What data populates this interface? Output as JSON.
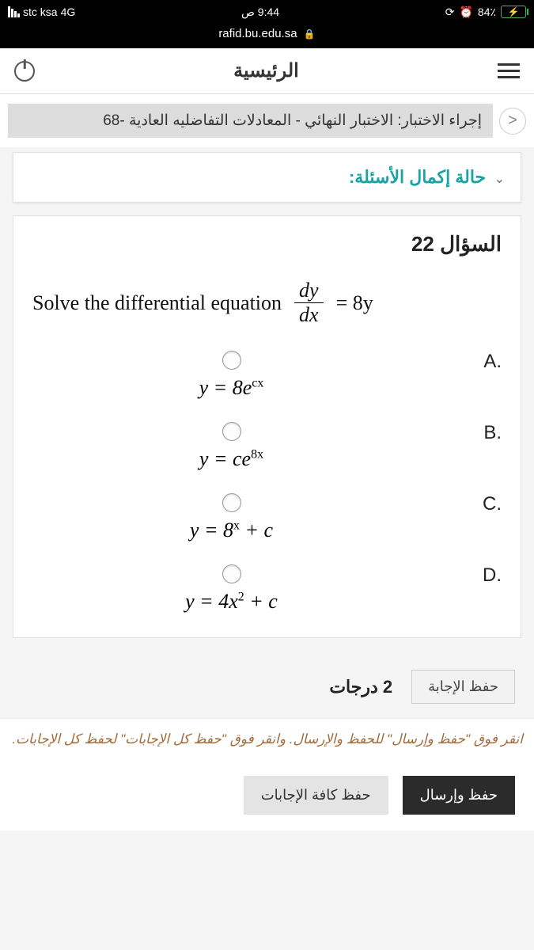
{
  "status": {
    "battery": "84٪",
    "time": "9:44 ص",
    "network": "4G",
    "carrier": "stc ksa"
  },
  "url": "rafid.bu.edu.sa",
  "header": {
    "title": "الرئيسية"
  },
  "breadcrumb": "إجراء الاختبار: الاختبار النهائي - المعادلات التفاضليه العادية -68",
  "completion_label": "حالة إكمال الأسئلة:",
  "question": {
    "title": "السؤال 22",
    "prompt": "Solve the differential equation",
    "eq_lhs_num": "dy",
    "eq_lhs_den": "dx",
    "eq_rhs": "= 8y",
    "options": {
      "A": {
        "label": ".A",
        "formula_html": "y = 8e<sup>cx</sup>"
      },
      "B": {
        "label": ".B",
        "formula_html": "y = ce<sup>8x</sup>"
      },
      "C": {
        "label": ".C",
        "formula_html": "y = 8<sup>x</sup> + c"
      },
      "D": {
        "label": ".D",
        "formula_html": "y = 4x<sup>2</sup> + c"
      }
    }
  },
  "points": "2 درجات",
  "save_answer": "حفظ الإجابة",
  "hint": "انقر فوق \"حفظ وإرسال\" للحفظ والإرسال. وانقر فوق \"حفظ كل الإجابات\" لحفظ كل الإجابات.",
  "btn_submit": "حفظ وإرسال",
  "btn_save_all": "حفظ كافة الإجابات",
  "colors": {
    "teal": "#1aa3a3",
    "hint": "#a46b3a",
    "dark_btn": "#2b2b2b"
  }
}
